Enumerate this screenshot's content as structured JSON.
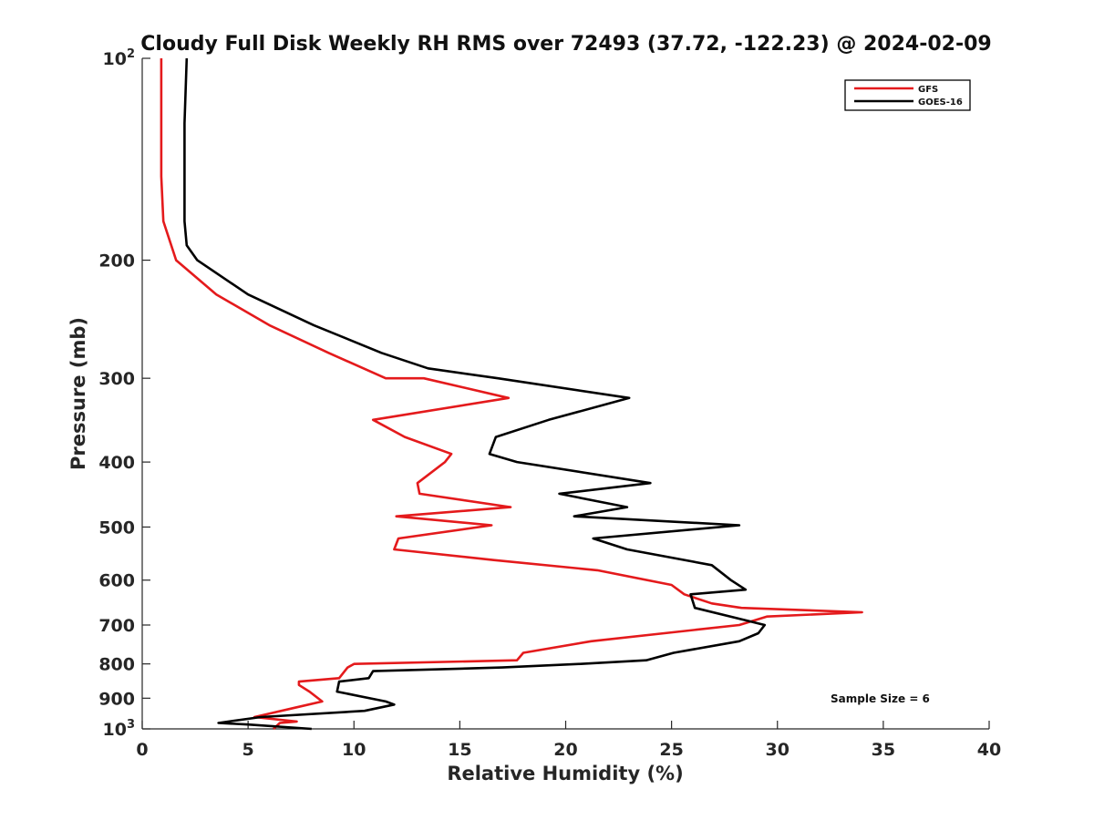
{
  "chart_data": {
    "type": "line",
    "title": "Cloudy Full Disk Weekly RH RMS over 72493 (37.72, -122.23) @ 2024-02-09",
    "xlabel": "Relative Humidity (%)",
    "ylabel": "Pressure (mb)",
    "xlim": [
      0,
      40
    ],
    "ylim": [
      1000,
      100
    ],
    "y_scale": "log",
    "y_reversed": true,
    "grid": false,
    "legend_position": "top-right",
    "x_ticks": [
      "0",
      "5",
      "10",
      "15",
      "20",
      "25",
      "30",
      "35",
      "40"
    ],
    "y_ticks": [
      {
        "value": 100,
        "base": "10",
        "exp": "2"
      },
      {
        "value": 200,
        "label": "200"
      },
      {
        "value": 300,
        "label": "300"
      },
      {
        "value": 400,
        "label": "400"
      },
      {
        "value": 500,
        "label": "500"
      },
      {
        "value": 600,
        "label": "600"
      },
      {
        "value": 700,
        "label": "700"
      },
      {
        "value": 800,
        "label": "800"
      },
      {
        "value": 900,
        "label": "900"
      },
      {
        "value": 1000,
        "base": "10",
        "exp": "3"
      }
    ],
    "series": [
      {
        "name": "GFS",
        "color": "#e41a1c",
        "points": [
          [
            0.9,
            100
          ],
          [
            0.9,
            125
          ],
          [
            0.9,
            150
          ],
          [
            1.0,
            175
          ],
          [
            1.6,
            200
          ],
          [
            3.5,
            225
          ],
          [
            6.0,
            250
          ],
          [
            8.8,
            275
          ],
          [
            11.5,
            300
          ],
          [
            13.3,
            300
          ],
          [
            17.3,
            321
          ],
          [
            10.9,
            346
          ],
          [
            12.4,
            367
          ],
          [
            14.6,
            389
          ],
          [
            14.3,
            400
          ],
          [
            13.0,
            430
          ],
          [
            13.1,
            446
          ],
          [
            17.4,
            467
          ],
          [
            12.0,
            482
          ],
          [
            16.5,
            497
          ],
          [
            12.1,
            520
          ],
          [
            11.9,
            540
          ],
          [
            16.6,
            560
          ],
          [
            21.5,
            580
          ],
          [
            25.0,
            610
          ],
          [
            25.6,
            630
          ],
          [
            26.9,
            650
          ],
          [
            28.3,
            660
          ],
          [
            34.0,
            670
          ],
          [
            29.5,
            680
          ],
          [
            28.2,
            700
          ],
          [
            21.2,
            740
          ],
          [
            18.0,
            770
          ],
          [
            17.7,
            790
          ],
          [
            10.0,
            800
          ],
          [
            9.7,
            810
          ],
          [
            9.3,
            840
          ],
          [
            7.4,
            850
          ],
          [
            7.4,
            860
          ],
          [
            7.9,
            880
          ],
          [
            8.5,
            910
          ],
          [
            7.2,
            930
          ],
          [
            5.3,
            960
          ],
          [
            7.3,
            975
          ],
          [
            6.5,
            980
          ],
          [
            6.2,
            1000
          ]
        ]
      },
      {
        "name": "GOES-16",
        "color": "#000000",
        "points": [
          [
            2.1,
            100
          ],
          [
            2.0,
            125
          ],
          [
            2.0,
            150
          ],
          [
            2.0,
            175
          ],
          [
            2.1,
            190
          ],
          [
            2.6,
            200
          ],
          [
            5.0,
            225
          ],
          [
            8.1,
            250
          ],
          [
            11.3,
            275
          ],
          [
            13.5,
            290
          ],
          [
            16.8,
            300
          ],
          [
            23.0,
            321
          ],
          [
            19.2,
            346
          ],
          [
            16.7,
            367
          ],
          [
            16.4,
            389
          ],
          [
            17.7,
            400
          ],
          [
            24.0,
            430
          ],
          [
            19.7,
            446
          ],
          [
            22.9,
            467
          ],
          [
            20.4,
            482
          ],
          [
            28.2,
            497
          ],
          [
            21.3,
            520
          ],
          [
            22.9,
            540
          ],
          [
            26.9,
            570
          ],
          [
            27.8,
            600
          ],
          [
            28.5,
            620
          ],
          [
            25.9,
            630
          ],
          [
            26.1,
            660
          ],
          [
            28.6,
            690
          ],
          [
            29.4,
            700
          ],
          [
            29.1,
            720
          ],
          [
            28.2,
            740
          ],
          [
            25.1,
            770
          ],
          [
            23.8,
            790
          ],
          [
            20.7,
            800
          ],
          [
            17.0,
            810
          ],
          [
            10.9,
            820
          ],
          [
            10.7,
            840
          ],
          [
            9.3,
            850
          ],
          [
            9.2,
            880
          ],
          [
            11.5,
            910
          ],
          [
            11.9,
            920
          ],
          [
            10.5,
            940
          ],
          [
            5.6,
            960
          ],
          [
            3.6,
            980
          ],
          [
            5.0,
            985
          ],
          [
            8.0,
            1000
          ]
        ]
      }
    ],
    "annotation": "Sample Size = 6"
  }
}
